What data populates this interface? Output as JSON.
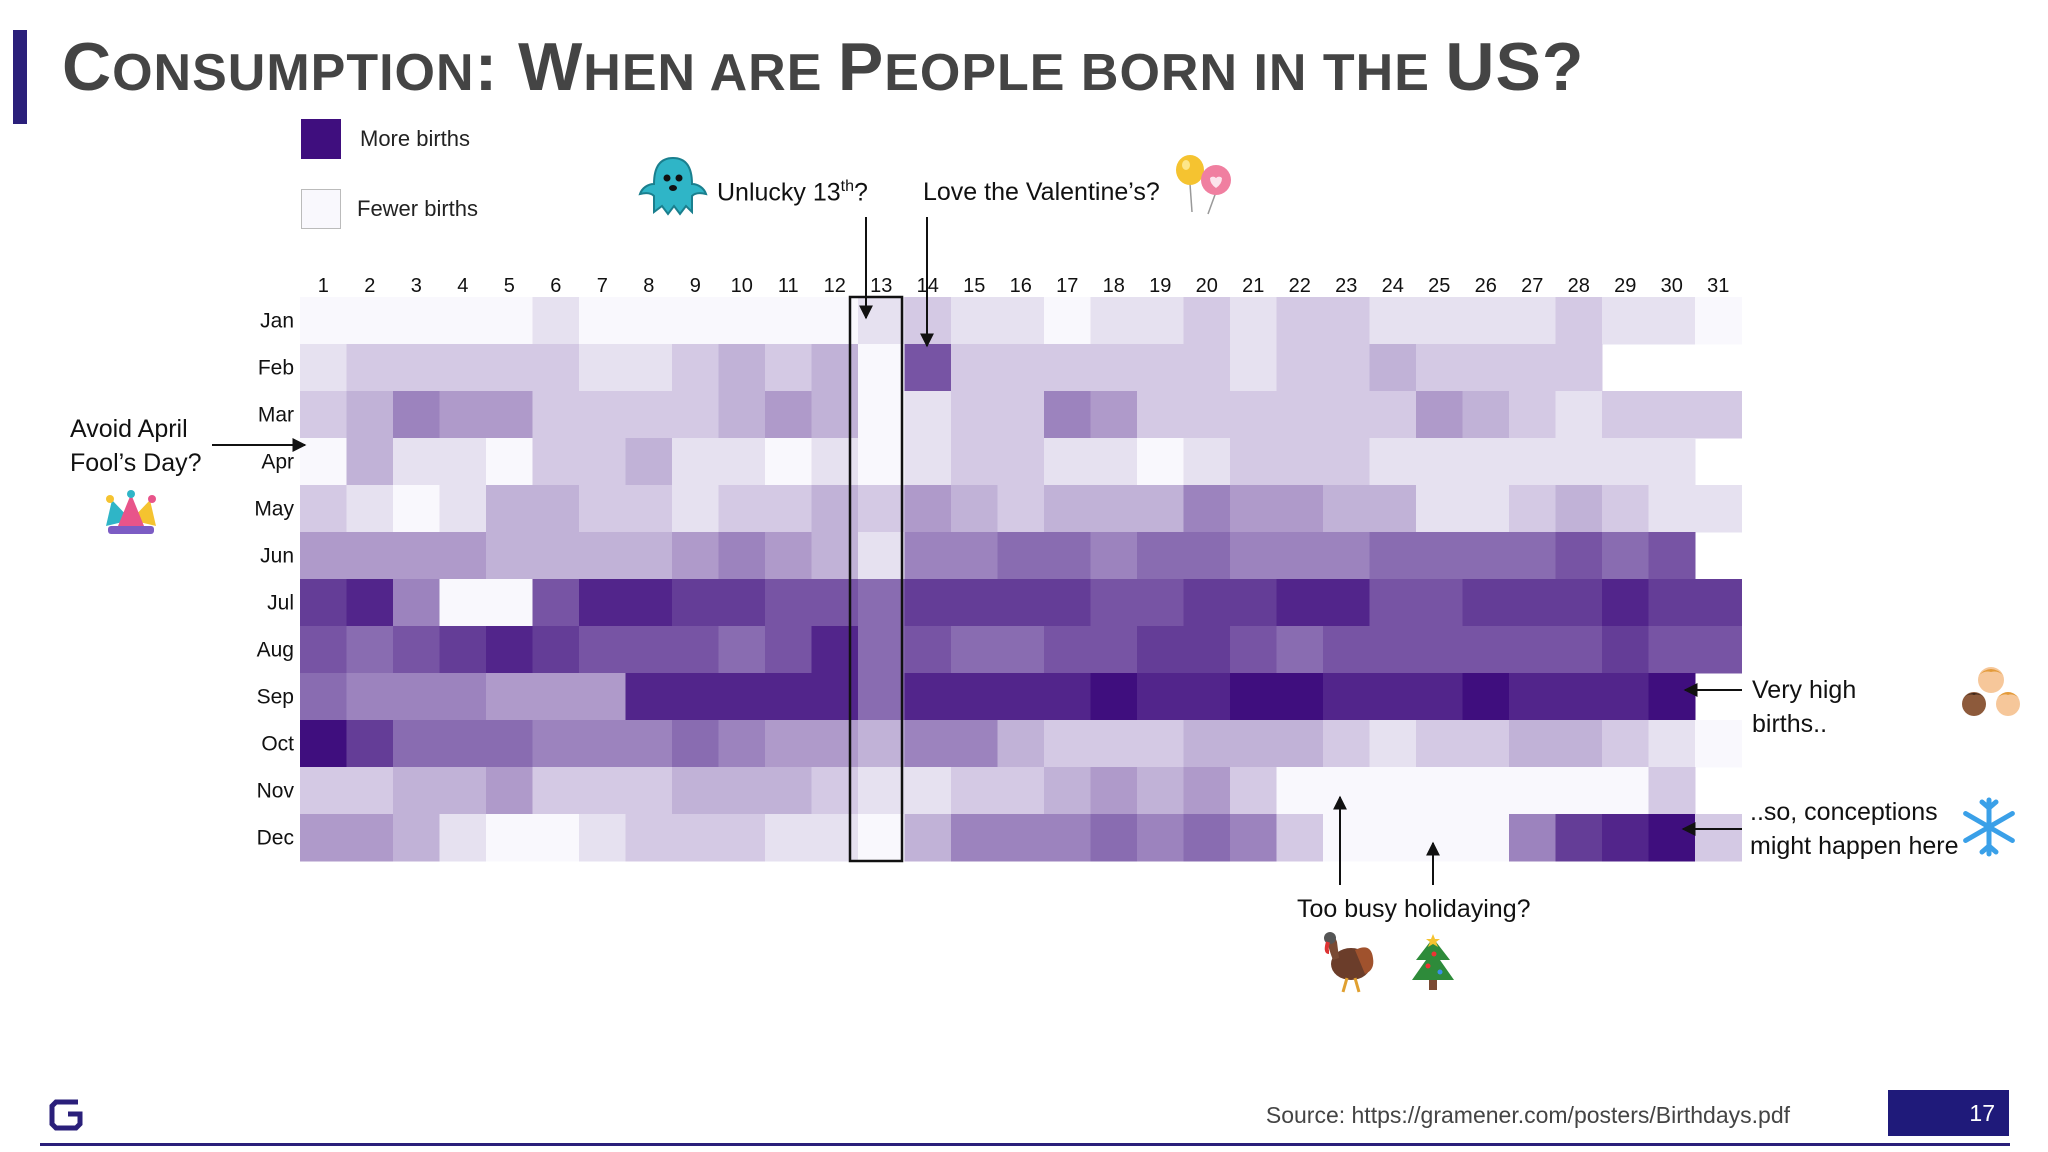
{
  "title": {
    "part1_big": "C",
    "part1_sc": "ONSUMPTION",
    "colon": ": ",
    "w": "W",
    "when": "HEN ARE ",
    "p": "P",
    "eople": "EOPLE BORN IN THE ",
    "us": "US?"
  },
  "legend": {
    "more": "More births",
    "fewer": "Fewer births",
    "more_color": "#3f0e7e",
    "fewer_color": "#f9f8fd"
  },
  "annotations": {
    "unlucky": "Unlucky 13",
    "unlucky_sup": "th",
    "unlucky_q": "?",
    "valentine": "Love the Valentine’s?",
    "april_line1": "Avoid April",
    "april_line2": "Fool’s Day?",
    "very_high_line1": "Very high",
    "very_high_line2": "births..",
    "conceptions_line1": "..so, conceptions",
    "conceptions_line2": "might happen here",
    "holiday": "Too busy holidaying?"
  },
  "icons": [
    "ghost-icon",
    "balloons-icon",
    "jester-hat-icon",
    "children-faces-icon",
    "snowflake-icon",
    "turkey-icon",
    "christmas-tree-icon"
  ],
  "footer": {
    "source": "Source: https://gramener.com/posters/Birthdays.pdf",
    "page": "17",
    "accent": "#1f1a7a"
  },
  "chart_data": {
    "type": "heatmap",
    "x_labels": [
      "1",
      "2",
      "3",
      "4",
      "5",
      "6",
      "7",
      "8",
      "9",
      "10",
      "11",
      "12",
      "13",
      "14",
      "15",
      "16",
      "17",
      "18",
      "19",
      "20",
      "21",
      "22",
      "23",
      "24",
      "25",
      "26",
      "27",
      "28",
      "29",
      "30",
      "31"
    ],
    "y_labels": [
      "Jan",
      "Feb",
      "Mar",
      "Apr",
      "May",
      "Jun",
      "Jul",
      "Aug",
      "Sep",
      "Oct",
      "Nov",
      "Dec"
    ],
    "scale": {
      "min": 0,
      "max": 10,
      "low_color": "#f9f8fd",
      "high_color": "#3f0e7e",
      "note": "relative birth intensity (0 = fewer births, 10 = more births)"
    },
    "values": [
      [
        0,
        0,
        0,
        0,
        0,
        1,
        0,
        0,
        0,
        0,
        0,
        0,
        1,
        2,
        1,
        1,
        0,
        1,
        1,
        2,
        1,
        2,
        2,
        1,
        1,
        1,
        1,
        2,
        1,
        1,
        0
      ],
      [
        1,
        2,
        2,
        2,
        2,
        2,
        1,
        1,
        2,
        3,
        2,
        3,
        0,
        7,
        2,
        2,
        2,
        2,
        2,
        2,
        1,
        2,
        2,
        3,
        2,
        2,
        2,
        2,
        null,
        null,
        null
      ],
      [
        2,
        3,
        5,
        4,
        4,
        2,
        2,
        2,
        2,
        3,
        4,
        3,
        0,
        1,
        2,
        2,
        5,
        4,
        2,
        2,
        2,
        2,
        2,
        2,
        4,
        3,
        2,
        1,
        2,
        2,
        2
      ],
      [
        0,
        3,
        1,
        1,
        0,
        2,
        2,
        3,
        1,
        1,
        0,
        1,
        0,
        1,
        2,
        2,
        1,
        1,
        0,
        1,
        2,
        2,
        2,
        1,
        1,
        1,
        1,
        1,
        1,
        1,
        null
      ],
      [
        2,
        1,
        0,
        1,
        3,
        3,
        2,
        2,
        1,
        2,
        2,
        3,
        2,
        4,
        3,
        2,
        3,
        3,
        3,
        5,
        4,
        4,
        3,
        3,
        1,
        1,
        2,
        3,
        2,
        1,
        1
      ],
      [
        4,
        4,
        4,
        4,
        3,
        3,
        3,
        3,
        4,
        5,
        4,
        3,
        1,
        5,
        5,
        6,
        6,
        5,
        6,
        6,
        5,
        5,
        5,
        6,
        6,
        6,
        6,
        7,
        6,
        7,
        null
      ],
      [
        8,
        9,
        5,
        0,
        0,
        7,
        9,
        9,
        8,
        8,
        7,
        7,
        6,
        8,
        8,
        8,
        8,
        7,
        7,
        8,
        8,
        9,
        9,
        7,
        7,
        8,
        8,
        8,
        9,
        8,
        8
      ],
      [
        7,
        6,
        7,
        8,
        9,
        8,
        7,
        7,
        7,
        6,
        7,
        9,
        6,
        7,
        6,
        6,
        7,
        7,
        8,
        8,
        7,
        6,
        7,
        7,
        7,
        7,
        7,
        7,
        8,
        7,
        7
      ],
      [
        6,
        5,
        5,
        5,
        4,
        4,
        4,
        9,
        9,
        9,
        9,
        9,
        6,
        9,
        9,
        9,
        9,
        10,
        9,
        9,
        10,
        10,
        9,
        9,
        9,
        10,
        9,
        9,
        9,
        10,
        null
      ],
      [
        10,
        8,
        6,
        6,
        6,
        5,
        5,
        5,
        6,
        5,
        4,
        4,
        3,
        5,
        5,
        3,
        2,
        2,
        2,
        3,
        3,
        3,
        2,
        1,
        2,
        2,
        3,
        3,
        2,
        1,
        0
      ],
      [
        2,
        2,
        3,
        3,
        4,
        2,
        2,
        2,
        3,
        3,
        3,
        2,
        1,
        1,
        2,
        2,
        3,
        4,
        3,
        4,
        2,
        0,
        0,
        0,
        0,
        0,
        0,
        0,
        0,
        2,
        null
      ],
      [
        4,
        4,
        3,
        1,
        0,
        0,
        1,
        2,
        2,
        2,
        1,
        1,
        0,
        3,
        5,
        5,
        5,
        6,
        5,
        6,
        5,
        2,
        0,
        0,
        0,
        0,
        5,
        8,
        9,
        10,
        2
      ]
    ]
  }
}
